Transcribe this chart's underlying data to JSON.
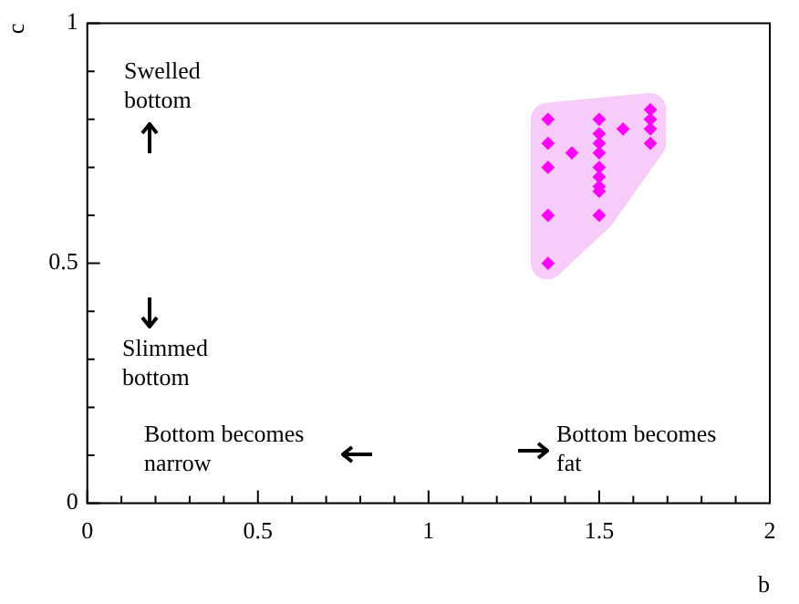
{
  "chart_data": {
    "type": "scatter",
    "xlabel": "b",
    "ylabel": "c",
    "xlim": [
      0,
      2
    ],
    "ylim": [
      0,
      1
    ],
    "xticks": [
      0,
      {
        "value": 0.1,
        "label": null
      },
      {
        "value": 0.2,
        "label": null
      },
      {
        "value": 0.3,
        "label": null
      },
      {
        "value": 0.4,
        "label": null
      },
      0.5,
      {
        "value": 0.6,
        "label": null
      },
      {
        "value": 0.7,
        "label": null
      },
      {
        "value": 0.8,
        "label": null
      },
      {
        "value": 0.9,
        "label": null
      },
      1,
      {
        "value": 1.1,
        "label": null
      },
      {
        "value": 1.2,
        "label": null
      },
      {
        "value": 1.3,
        "label": null
      },
      {
        "value": 1.4,
        "label": null
      },
      1.5,
      {
        "value": 1.6,
        "label": null
      },
      {
        "value": 1.7,
        "label": null
      },
      {
        "value": 1.8,
        "label": null
      },
      {
        "value": 1.9,
        "label": null
      },
      2
    ],
    "yticks": [
      0,
      {
        "value": 0.1,
        "label": null
      },
      {
        "value": 0.2,
        "label": null
      },
      {
        "value": 0.3,
        "label": null
      },
      {
        "value": 0.4,
        "label": null
      },
      0.5,
      {
        "value": 0.6,
        "label": null
      },
      {
        "value": 0.7,
        "label": null
      },
      {
        "value": 0.8,
        "label": null
      },
      {
        "value": 0.9,
        "label": null
      },
      1
    ],
    "marker": "diamond",
    "legend": false,
    "grid": false,
    "series": [
      {
        "color": "#ff00ff",
        "x": [
          1.35,
          1.35,
          1.35,
          1.35,
          1.35,
          1.42,
          1.5,
          1.5,
          1.5,
          1.5,
          1.5,
          1.5,
          1.5,
          1.5,
          1.5,
          1.57,
          1.65,
          1.65,
          1.65,
          1.65
        ],
        "values": [
          0.8,
          0.75,
          0.7,
          0.6,
          0.5,
          0.73,
          0.8,
          0.77,
          0.75,
          0.73,
          0.7,
          0.68,
          0.66,
          0.65,
          0.6,
          0.78,
          0.82,
          0.8,
          0.78,
          0.75
        ]
      }
    ],
    "annotations": [
      "Swelled bottom",
      "Slimmed bottom",
      "Bottom becomes narrow",
      "Bottom becomes fat"
    ]
  }
}
